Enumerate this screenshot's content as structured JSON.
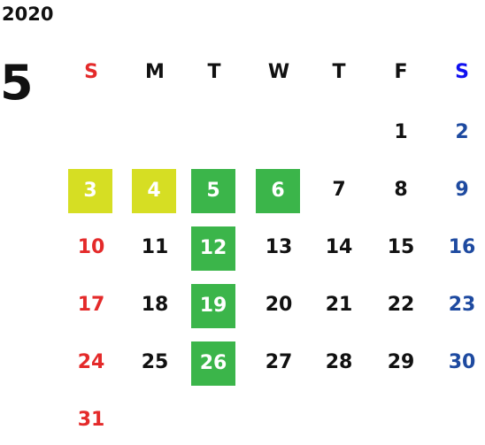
{
  "year": "2020",
  "month": "5",
  "weekdays": [
    "S",
    "M",
    "T",
    "W",
    "T",
    "F",
    "S"
  ],
  "weeks": [
    [
      null,
      null,
      null,
      null,
      null,
      {
        "text": "1"
      },
      {
        "text": "2"
      }
    ],
    [
      {
        "text": "3",
        "fill": "#d6de23"
      },
      {
        "text": "4",
        "fill": "#d6de23"
      },
      {
        "text": "5",
        "fill": "#3bb54a"
      },
      {
        "text": "6",
        "fill": "#3bb54a"
      },
      {
        "text": "7"
      },
      {
        "text": "8"
      },
      {
        "text": "9"
      }
    ],
    [
      {
        "text": "10"
      },
      {
        "text": "11"
      },
      {
        "text": "12",
        "fill": "#3bb54a"
      },
      {
        "text": "13"
      },
      {
        "text": "14"
      },
      {
        "text": "15"
      },
      {
        "text": "16"
      }
    ],
    [
      {
        "text": "17"
      },
      {
        "text": "18"
      },
      {
        "text": "19",
        "fill": "#3bb54a"
      },
      {
        "text": "20"
      },
      {
        "text": "21"
      },
      {
        "text": "22"
      },
      {
        "text": "23"
      }
    ],
    [
      {
        "text": "24"
      },
      {
        "text": "25"
      },
      {
        "text": "26",
        "fill": "#3bb54a"
      },
      {
        "text": "27"
      },
      {
        "text": "28"
      },
      {
        "text": "29"
      },
      {
        "text": "30"
      }
    ],
    [
      {
        "text": "31"
      },
      null,
      null,
      null,
      null,
      null,
      null
    ]
  ]
}
